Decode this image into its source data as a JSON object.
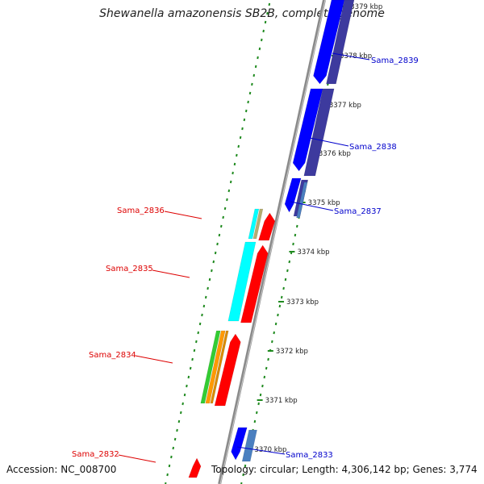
{
  "title": "Shewanella amazonensis SB2B, complete genome",
  "footer": {
    "accession": "Accession: NC_008700",
    "topology": "Topology: circular; Length: 4,306,142 bp; Genes: 3,774"
  },
  "colors": {
    "backbone": "#8a8a8a",
    "tick": "#1f8a1f",
    "forward_label": "#0000cc",
    "reverse_label": "#dd0000",
    "forward_gene": "#0000ff",
    "forward_cds": "#3d3a9e",
    "forward_feature": "#4a7fc0",
    "reverse_gene": "#ff0000",
    "reverse_feature_cyan": "#00ffff",
    "reverse_feature_tan": "#b5ad70",
    "reverse_feature_green": "#33cc33",
    "reverse_feature_orange": "#ff9900"
  },
  "ticks": [
    "3379 kbp",
    "3378 kbp",
    "3377 kbp",
    "3376 kbp",
    "3375 kbp",
    "3374 kbp",
    "3373 kbp",
    "3372 kbp",
    "3371 kbp",
    "3370 kbp"
  ],
  "forward_genes": [
    "Sama_2839",
    "Sama_2838",
    "Sama_2837",
    "Sama_2833"
  ],
  "reverse_genes": [
    "Sama_2836",
    "Sama_2835",
    "Sama_2834",
    "Sama_2832"
  ]
}
